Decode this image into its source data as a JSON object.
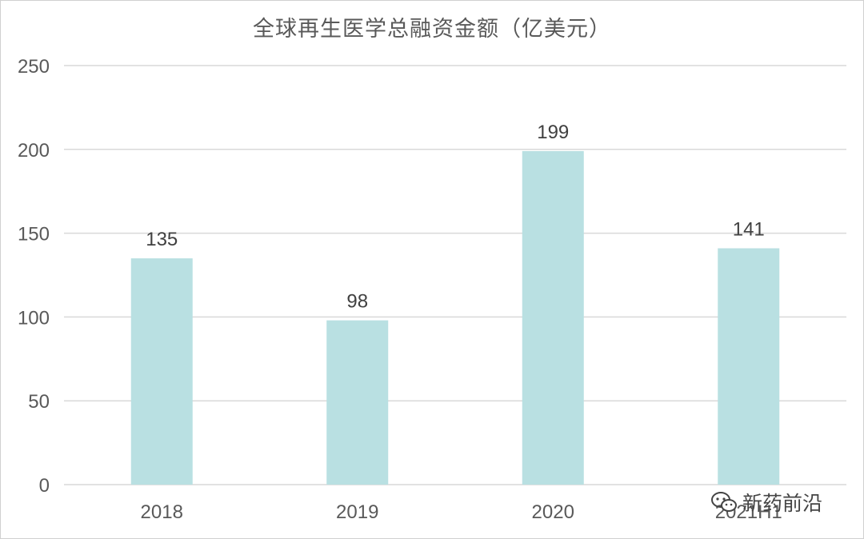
{
  "chart_data": {
    "type": "bar",
    "title": "全球再生医学总融资金额（亿美元）",
    "categories": [
      "2018",
      "2019",
      "2020",
      "2021H1"
    ],
    "values": [
      135,
      98,
      199,
      141
    ],
    "data_labels": [
      "135",
      "98",
      "199",
      "141"
    ],
    "ylim": [
      0,
      250
    ],
    "yticks": [
      0,
      50,
      100,
      150,
      200,
      250
    ],
    "grid": true,
    "legend": "none",
    "colors": {
      "bar": "#b9e0e2",
      "grid": "#d9d9d9",
      "tick_text": "#595959",
      "label_text": "#404040"
    }
  },
  "watermark": {
    "text": "新药前沿",
    "icon": "wechat-icon"
  }
}
